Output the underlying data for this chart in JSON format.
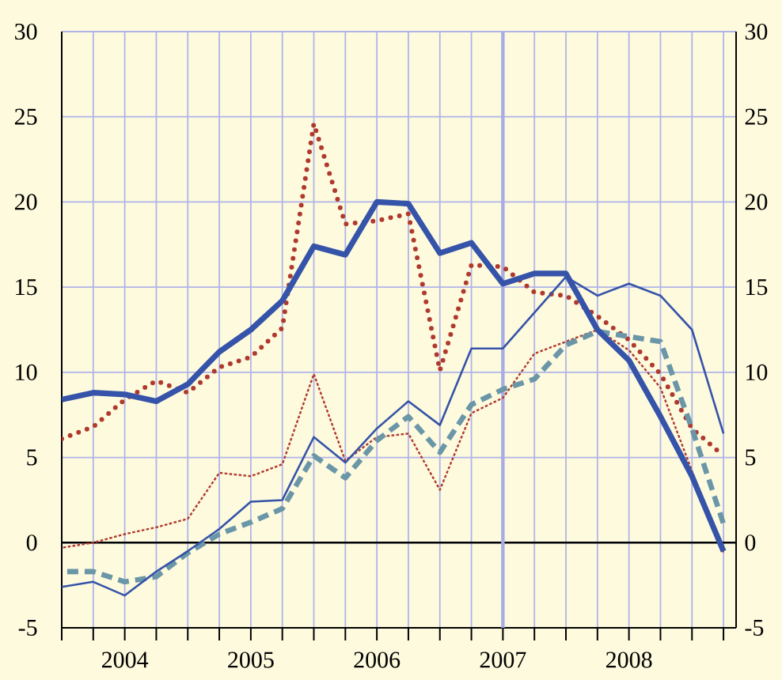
{
  "chart_data": {
    "type": "line",
    "x": [
      2003.5,
      2003.75,
      2004,
      2004.25,
      2004.5,
      2004.75,
      2005,
      2005.25,
      2005.5,
      2005.75,
      2006,
      2006.25,
      2006.5,
      2006.75,
      2007,
      2007.25,
      2007.5,
      2007.75,
      2008,
      2008.25,
      2008.5,
      2008.75
    ],
    "series": [
      {
        "color": "#3553a8",
        "line_style": "solid",
        "values": [
          8.4,
          8.8,
          8.7,
          8.3,
          9.3,
          11.2,
          12.5,
          14.2,
          17.4,
          16.9,
          20.0,
          19.9,
          17.0,
          17.6,
          15.2,
          15.8,
          15.8,
          12.5,
          10.7,
          7.4,
          3.9,
          -0.5
        ]
      },
      {
        "color": "#3553a8",
        "line_style": "solid",
        "values": [
          -2.6,
          -2.3,
          -3.1,
          -1.7,
          -0.5,
          0.8,
          2.4,
          2.5,
          6.2,
          4.7,
          6.7,
          8.3,
          6.9,
          11.4,
          11.4,
          13.5,
          15.6,
          14.5,
          15.2,
          14.5,
          12.5,
          6.4
        ]
      },
      {
        "color": "#6a96a8",
        "line_style": "dashed",
        "values": [
          -1.7,
          -1.7,
          -2.3,
          -2.0,
          -0.6,
          0.5,
          1.2,
          2.0,
          5.1,
          3.8,
          6.0,
          7.4,
          5.3,
          8.1,
          9.0,
          9.6,
          11.6,
          12.4,
          12.1,
          11.8,
          6.7,
          1.1
        ]
      },
      {
        "color": "#b0392e",
        "line_style": "dotted",
        "values": [
          6.1,
          6.8,
          8.4,
          9.5,
          8.8,
          10.3,
          10.9,
          12.6,
          24.6,
          18.7,
          18.9,
          19.3,
          10.1,
          16.3,
          16.2,
          14.7,
          14.5,
          13.3,
          11.9,
          9.9,
          6.7,
          5.1
        ]
      },
      {
        "color": "#b0392e",
        "line_style": "dotted",
        "values": [
          -0.3,
          0.0,
          0.5,
          0.9,
          1.4,
          4.1,
          3.9,
          4.6,
          9.9,
          4.8,
          6.2,
          6.4,
          3.1,
          7.6,
          8.5,
          11.1,
          11.8,
          12.5,
          11.3,
          9.1,
          4.2,
          -0.6
        ]
      }
    ],
    "xlim": [
      2003.5,
      2008.85
    ],
    "xticks": [
      {
        "value": 2003.5,
        "label": null
      },
      {
        "value": 2003.75,
        "label": null
      },
      {
        "value": 2004,
        "label": "2004"
      },
      {
        "value": 2004.25,
        "label": null
      },
      {
        "value": 2004.5,
        "label": null
      },
      {
        "value": 2004.75,
        "label": null
      },
      {
        "value": 2005,
        "label": "2005"
      },
      {
        "value": 2005.25,
        "label": null
      },
      {
        "value": 2005.5,
        "label": null
      },
      {
        "value": 2005.75,
        "label": null
      },
      {
        "value": 2006,
        "label": "2006"
      },
      {
        "value": 2006.25,
        "label": null
      },
      {
        "value": 2006.5,
        "label": null
      },
      {
        "value": 2006.75,
        "label": null
      },
      {
        "value": 2007,
        "label": "2007"
      },
      {
        "value": 2007.25,
        "label": null
      },
      {
        "value": 2007.5,
        "label": null
      },
      {
        "value": 2007.75,
        "label": null
      },
      {
        "value": 2008,
        "label": "2008"
      },
      {
        "value": 2008.25,
        "label": null
      },
      {
        "value": 2008.5,
        "label": null
      },
      {
        "value": 2008.75,
        "label": null
      }
    ],
    "ylim": [
      -5,
      30
    ],
    "yticks": [
      -5,
      0,
      5,
      10,
      15,
      20,
      25,
      30
    ],
    "y2lim": [
      -5,
      30
    ],
    "y2ticks": [
      -5,
      0,
      5,
      10,
      15,
      20,
      25,
      30
    ],
    "ref_lines": [
      {
        "axis": "y",
        "value": 0,
        "color": "#000000"
      },
      {
        "axis": "x",
        "value": 2007,
        "color": "#a9abe6"
      }
    ],
    "grid": true,
    "marker": "none"
  }
}
